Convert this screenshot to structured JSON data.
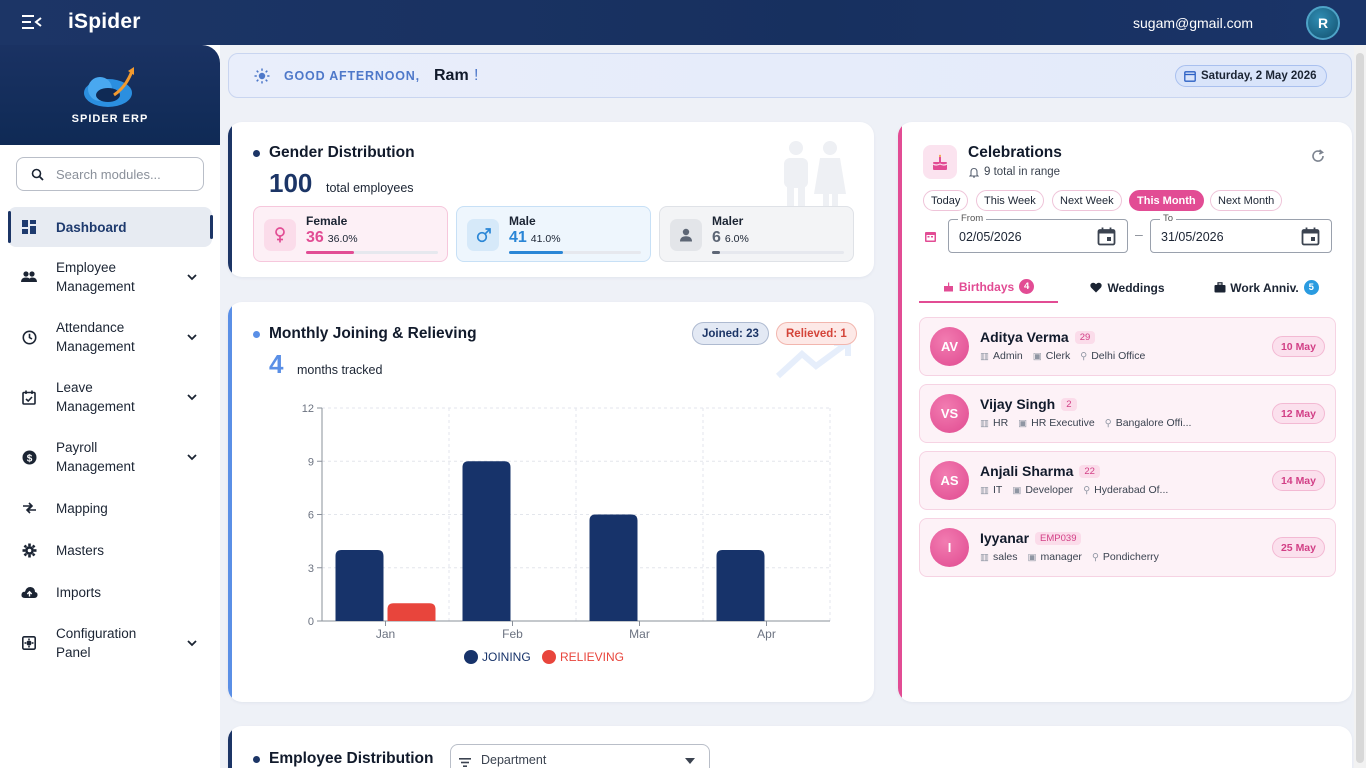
{
  "app": {
    "title": "iSpider",
    "user_email": "sugam@gmail.com",
    "avatar_initial": "R"
  },
  "logo": {
    "text": "SPIDER ERP"
  },
  "sidebar": {
    "search_placeholder": "Search modules...",
    "items": [
      {
        "label": "Dashboard",
        "icon": "dashboard-icon",
        "active": true
      },
      {
        "label": "Employee Management",
        "icon": "people-icon",
        "expandable": true
      },
      {
        "label": "Attendance Management",
        "icon": "clock-icon",
        "expandable": true
      },
      {
        "label": "Leave Management",
        "icon": "calendar-check-icon",
        "expandable": true
      },
      {
        "label": "Payroll Management",
        "icon": "dollar-icon",
        "expandable": true
      },
      {
        "label": "Mapping",
        "icon": "mapping-icon"
      },
      {
        "label": "Masters",
        "icon": "gear-icon"
      },
      {
        "label": "Imports",
        "icon": "cloud-upload-icon"
      },
      {
        "label": "Configuration Panel",
        "icon": "config-icon",
        "expandable": true
      }
    ]
  },
  "greeting": {
    "label": "GOOD AFTERNOON,",
    "name": "Ram",
    "exclaim": "!",
    "date": "Saturday, 2 May 2026"
  },
  "gender": {
    "title": "Gender Distribution",
    "total": "100",
    "total_caption": "total employees",
    "items": [
      {
        "label": "Female",
        "count": "36",
        "pct": "36.0%",
        "fraction": 0.36,
        "color": "#e24c94"
      },
      {
        "label": "Male",
        "count": "41",
        "pct": "41.0%",
        "fraction": 0.41,
        "color": "#2a86d6"
      },
      {
        "label": "Maler",
        "count": "6",
        "pct": "6.0%",
        "fraction": 0.06,
        "color": "#5d6675"
      }
    ]
  },
  "joining": {
    "title": "Monthly Joining & Relieving",
    "count": "4",
    "count_caption": "months tracked",
    "joined_pill": "Joined: 23",
    "relieved_pill": "Relieved: 1"
  },
  "chart_data": {
    "type": "bar",
    "categories": [
      "Jan",
      "Feb",
      "Mar",
      "Apr"
    ],
    "series": [
      {
        "name": "JOINING",
        "values": [
          4,
          9,
          6,
          4
        ],
        "color": "#17336a"
      },
      {
        "name": "RELIEVING",
        "values": [
          1,
          0,
          0,
          0
        ],
        "color": "#e8453c"
      }
    ],
    "yticks": [
      0,
      3,
      6,
      9,
      12
    ],
    "ylim": [
      0,
      12
    ],
    "grid": true,
    "legend": "bottom"
  },
  "celebrations": {
    "title": "Celebrations",
    "subtitle": "9 total in range",
    "filters": [
      {
        "label": "Today",
        "active": false
      },
      {
        "label": "This Week",
        "active": false
      },
      {
        "label": "Next Week",
        "active": false
      },
      {
        "label": "This Month",
        "active": true
      },
      {
        "label": "Next Month",
        "active": false
      }
    ],
    "from_label": "From",
    "from_value": "02/05/2026",
    "to_label": "To",
    "to_value": "31/05/2026",
    "range_sep": "–",
    "tabs": [
      {
        "label": "Birthdays",
        "badge": "4",
        "icon": "cake-icon",
        "active": true
      },
      {
        "label": "Weddings",
        "badge": "",
        "icon": "heart-icon",
        "active": false
      },
      {
        "label": "Work Anniv.",
        "badge": "5",
        "icon": "briefcase-icon",
        "active": false
      }
    ],
    "people": [
      {
        "initials": "AV",
        "name": "Aditya Verma",
        "tag": "29",
        "dept": "Admin",
        "role": "Clerk",
        "location": "Delhi Office",
        "date": "10 May"
      },
      {
        "initials": "VS",
        "name": "Vijay Singh",
        "tag": "2",
        "dept": "HR",
        "role": "HR Executive",
        "location": "Bangalore Offi...",
        "date": "12 May"
      },
      {
        "initials": "AS",
        "name": "Anjali Sharma",
        "tag": "22",
        "dept": "IT",
        "role": "Developer",
        "location": "Hyderabad Of...",
        "date": "14 May"
      },
      {
        "initials": "I",
        "name": "Iyyanar",
        "tag": "EMP039",
        "dept": "sales",
        "role": "manager",
        "location": "Pondicherry",
        "date": "25 May"
      }
    ]
  },
  "distribution": {
    "title": "Employee Distribution",
    "select_value": "Department"
  }
}
